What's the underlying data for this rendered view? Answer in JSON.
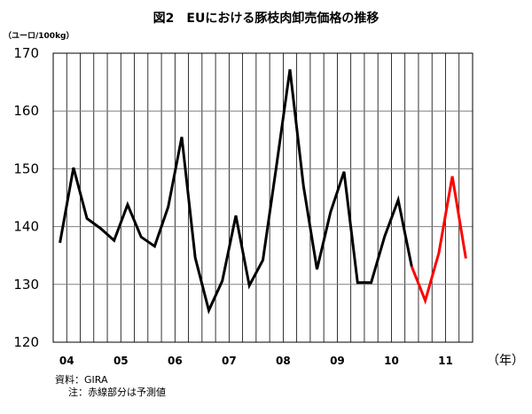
{
  "chart_data": {
    "type": "line",
    "title": "図2　EUにおける豚枝肉卸売価格の推移",
    "ylabel": "（ユーロ/100kg）",
    "xlabel": "（年）",
    "ylim": [
      120,
      170
    ],
    "yticks": [
      120,
      130,
      140,
      150,
      160,
      170
    ],
    "grid": true,
    "year_labels": [
      "04",
      "05",
      "06",
      "07",
      "08",
      "09",
      "10",
      "11"
    ],
    "series": [
      {
        "color": "#000000",
        "values": [
          137.2,
          150.2,
          141.4,
          139.7,
          137.6,
          143.8,
          138.2,
          136.6,
          143.4,
          155.5,
          134.6,
          125.5,
          130.6,
          141.9,
          129.8,
          134.2,
          150.5,
          167.2,
          147.0,
          132.6,
          142.5,
          149.5,
          130.3,
          130.3,
          138.3,
          144.6,
          133.1
        ]
      },
      {
        "color": "#ff0000",
        "values": [
          null,
          null,
          null,
          null,
          null,
          null,
          null,
          null,
          null,
          null,
          null,
          null,
          null,
          null,
          null,
          null,
          null,
          null,
          null,
          null,
          null,
          null,
          null,
          null,
          null,
          null,
          133.1,
          127.2,
          135.4,
          148.7,
          134.5
        ]
      }
    ]
  },
  "notes": {
    "source": "資料：GIRA",
    "note": "注：赤線部分は予測値"
  }
}
